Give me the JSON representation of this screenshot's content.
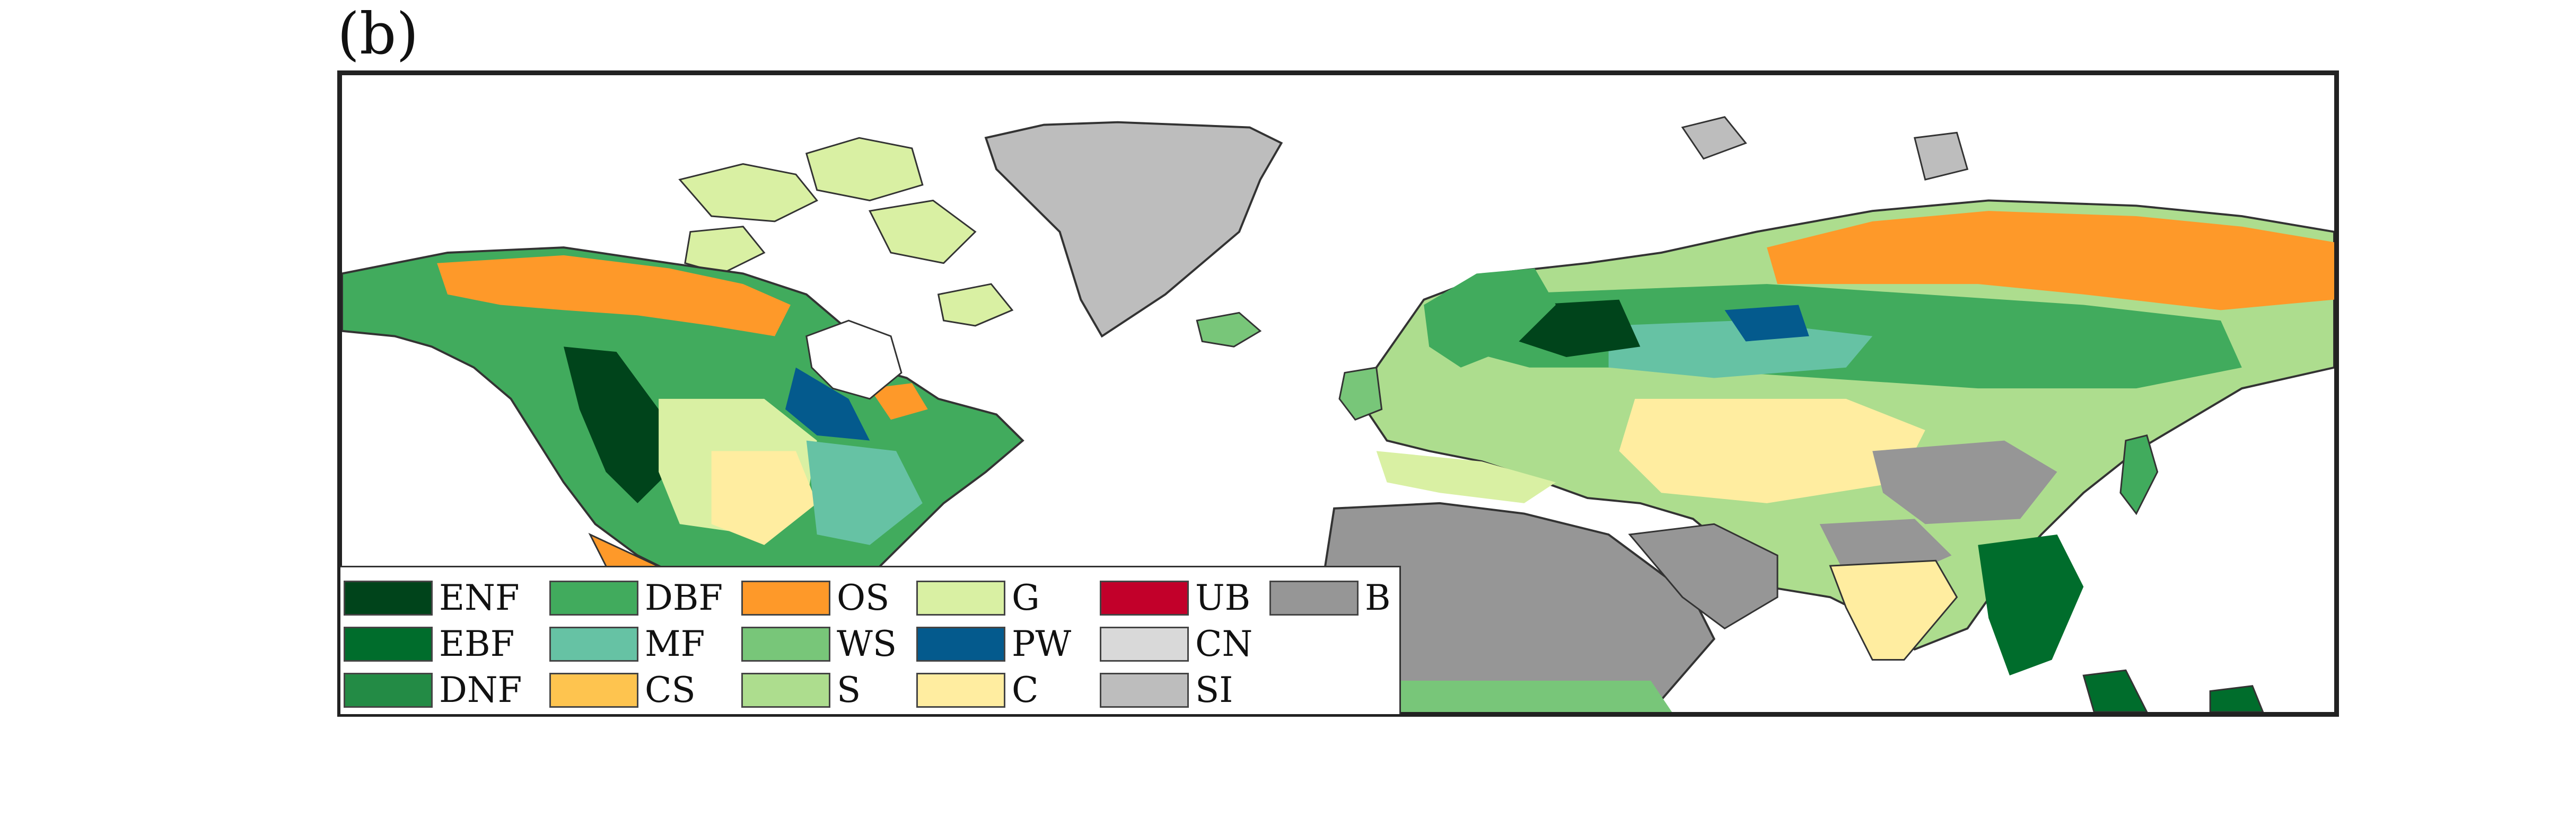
{
  "panel_label": "(b)",
  "legend": {
    "columns": [
      [
        {
          "code": "ENF",
          "color": "#00441b"
        },
        {
          "code": "EBF",
          "color": "#006d2c"
        },
        {
          "code": "DNF",
          "color": "#238b45"
        }
      ],
      [
        {
          "code": "DBF",
          "color": "#41ab5d"
        },
        {
          "code": "MF",
          "color": "#66c2a4"
        },
        {
          "code": "CS",
          "color": "#fec44f"
        }
      ],
      [
        {
          "code": "OS",
          "color": "#fe9929"
        },
        {
          "code": "WS",
          "color": "#78c679"
        },
        {
          "code": "S",
          "color": "#addd8e"
        }
      ],
      [
        {
          "code": "G",
          "color": "#d9f0a3"
        },
        {
          "code": "PW",
          "color": "#045a8d"
        },
        {
          "code": "C",
          "color": "#ffeda0"
        }
      ],
      [
        {
          "code": "UB",
          "color": "#c2002a"
        },
        {
          "code": "CN",
          "color": "#d9d9d9"
        },
        {
          "code": "SI",
          "color": "#bdbdbd"
        }
      ],
      [
        {
          "code": "B",
          "color": "#969696"
        }
      ]
    ]
  },
  "colors": {
    "ocean": "#ffffff",
    "coast": "#333333",
    "ice": "#bdbdbd",
    "barren": "#969696",
    "tundra_shrub": "#fe9929",
    "boreal_forest": "#41ab5d",
    "conifer": "#00441b",
    "wetland": "#045a8d",
    "grassland": "#d9f0a3",
    "savanna": "#addd8e",
    "woody_savanna": "#78c679",
    "mixed_forest": "#66c2a4",
    "cropland": "#ffeda0",
    "closed_shrub": "#fec44f",
    "evergreen_broadleaf": "#006d2c"
  }
}
